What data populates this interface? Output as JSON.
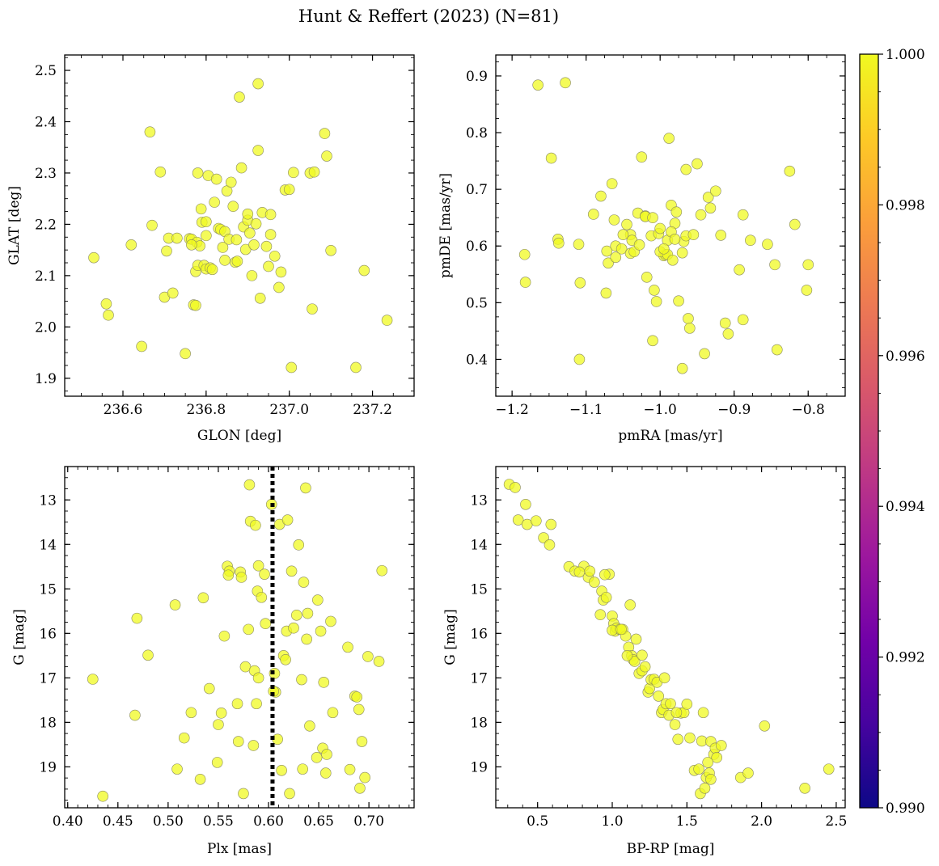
{
  "figure_title": "Hunt & Reffert (2023) (N=81)",
  "colorbar": {
    "min": 0.99,
    "max": 1.0,
    "ticks": [
      0.99,
      0.992,
      0.994,
      0.996,
      0.998,
      1.0
    ],
    "tick_labels": [
      "0.990",
      "0.992",
      "0.994",
      "0.996",
      "0.998",
      "1.000"
    ],
    "colors": [
      "#0d0887",
      "#46039f",
      "#7201a8",
      "#9c179e",
      "#bd3786",
      "#d8576b",
      "#ed7953",
      "#fb9f3a",
      "#fdca26",
      "#f0f921"
    ],
    "point_color": "#f0f921"
  },
  "chart_data": [
    {
      "type": "scatter",
      "title": "",
      "xlabel": "GLON [deg]",
      "ylabel": "GLAT [deg]",
      "xlim": [
        236.46,
        237.3
      ],
      "ylim": [
        1.865,
        2.53
      ],
      "invert_y": false,
      "xticks": [
        236.6,
        236.8,
        237.0,
        237.2
      ],
      "xtick_labels": [
        "236.6",
        "236.8",
        "237.0",
        "237.2"
      ],
      "yticks": [
        1.9,
        2.0,
        2.1,
        2.2,
        2.3,
        2.4,
        2.5
      ],
      "ytick_labels": [
        "1.9",
        "2.0",
        "2.1",
        "2.2",
        "2.3",
        "2.4",
        "2.5"
      ],
      "x_minor_step": 0.05,
      "y_minor_step": 0.025,
      "x": [
        236.53,
        236.56,
        236.565,
        236.62,
        236.645,
        236.665,
        236.67,
        236.69,
        236.7,
        236.705,
        236.71,
        236.72,
        236.73,
        236.75,
        236.76,
        236.765,
        236.77,
        236.775,
        236.775,
        236.778,
        236.78,
        236.78,
        236.785,
        236.788,
        236.79,
        236.795,
        236.8,
        236.8,
        236.8,
        236.805,
        236.81,
        236.815,
        236.82,
        236.825,
        236.83,
        236.835,
        236.84,
        236.845,
        236.85,
        236.855,
        236.86,
        236.865,
        236.87,
        236.875,
        236.88,
        236.885,
        236.89,
        236.895,
        236.9,
        236.905,
        236.91,
        236.915,
        236.92,
        236.925,
        236.925,
        236.93,
        236.935,
        236.945,
        236.95,
        236.955,
        236.955,
        236.965,
        236.975,
        236.98,
        236.99,
        237.0,
        237.005,
        237.01,
        237.05,
        237.055,
        237.06,
        237.085,
        237.09,
        237.1,
        237.16,
        237.18,
        237.235,
        236.765,
        236.845,
        236.873,
        236.9
      ],
      "y": [
        2.135,
        2.045,
        2.023,
        2.16,
        1.962,
        2.38,
        2.198,
        2.302,
        2.058,
        2.148,
        2.173,
        2.066,
        2.173,
        1.948,
        2.172,
        2.171,
        2.043,
        2.108,
        2.042,
        2.165,
        2.12,
        2.3,
        2.158,
        2.23,
        2.204,
        2.12,
        2.205,
        2.113,
        2.178,
        2.295,
        2.115,
        2.112,
        2.243,
        2.288,
        2.192,
        2.19,
        2.155,
        2.186,
        2.265,
        2.171,
        2.282,
        2.235,
        2.126,
        2.128,
        2.448,
        2.31,
        2.195,
        2.151,
        2.208,
        2.183,
        2.1,
        2.16,
        2.201,
        2.474,
        2.344,
        2.056,
        2.223,
        2.157,
        2.118,
        2.18,
        2.219,
        2.138,
        2.077,
        2.107,
        2.267,
        2.268,
        1.921,
        2.301,
        2.3,
        2.035,
        2.302,
        2.377,
        2.333,
        2.149,
        1.921,
        2.11,
        2.013,
        2.16,
        2.13,
        2.17,
        2.22
      ]
    },
    {
      "type": "scatter",
      "title": "",
      "xlabel": "pmRA [mas/yr]",
      "ylabel": "pmDE [mas/yr]",
      "xlim": [
        -1.222,
        -0.75
      ],
      "ylim": [
        0.335,
        0.937
      ],
      "invert_y": false,
      "xticks": [
        -1.2,
        -1.1,
        -1.0,
        -0.9,
        -0.8
      ],
      "xtick_labels": [
        "−1.2",
        "−1.1",
        "−1.0",
        "−0.9",
        "−0.8"
      ],
      "yticks": [
        0.4,
        0.5,
        0.6,
        0.7,
        0.8,
        0.9
      ],
      "ytick_labels": [
        "0.4",
        "0.5",
        "0.6",
        "0.7",
        "0.8",
        "0.9"
      ],
      "x_minor_step": 0.025,
      "y_minor_step": 0.025,
      "x": [
        -1.165,
        -1.128,
        -1.147,
        -1.183,
        -1.182,
        -1.138,
        -1.137,
        -1.11,
        -1.108,
        -1.109,
        -1.09,
        -1.08,
        -1.07,
        -1.073,
        -1.072,
        -1.065,
        -1.062,
        -1.06,
        -1.052,
        -1.045,
        -1.04,
        -1.04,
        -1.038,
        -1.035,
        -1.03,
        -1.028,
        -1.025,
        -1.02,
        -1.018,
        -1.012,
        -1.01,
        -1.008,
        -1.005,
        -1.002,
        -1.0,
        -0.995,
        -0.993,
        -0.99,
        -0.988,
        -0.985,
        -0.98,
        -0.978,
        -0.975,
        -0.97,
        -0.968,
        -0.965,
        -0.962,
        -0.96,
        -0.955,
        -0.95,
        -0.945,
        -0.94,
        -0.935,
        -0.932,
        -0.925,
        -0.918,
        -0.912,
        -0.908,
        -0.893,
        -0.888,
        -0.888,
        -0.878,
        -0.855,
        -0.845,
        -0.842,
        -0.825,
        -0.818,
        -0.802,
        -0.8,
        -1.05,
        -1.0,
        -0.99,
        -1.02,
        -0.985,
        -0.97,
        -0.965,
        -0.983,
        -1.06,
        -0.995,
        -1.01,
        -0.98
      ],
      "y": [
        0.884,
        0.888,
        0.755,
        0.585,
        0.536,
        0.612,
        0.605,
        0.603,
        0.535,
        0.4,
        0.656,
        0.688,
        0.57,
        0.517,
        0.591,
        0.71,
        0.646,
        0.6,
        0.595,
        0.638,
        0.62,
        0.587,
        0.61,
        0.59,
        0.658,
        0.602,
        0.757,
        0.653,
        0.545,
        0.618,
        0.433,
        0.522,
        0.502,
        0.622,
        0.631,
        0.583,
        0.585,
        0.61,
        0.79,
        0.672,
        0.64,
        0.66,
        0.503,
        0.384,
        0.608,
        0.618,
        0.472,
        0.455,
        0.62,
        0.745,
        0.655,
        0.41,
        0.686,
        0.667,
        0.697,
        0.619,
        0.464,
        0.445,
        0.558,
        0.655,
        0.47,
        0.61,
        0.603,
        0.567,
        0.417,
        0.732,
        0.638,
        0.522,
        0.567,
        0.62,
        0.59,
        0.585,
        0.652,
        0.625,
        0.588,
        0.735,
        0.575,
        0.58,
        0.595,
        0.65,
        0.612
      ]
    },
    {
      "type": "scatter",
      "title": "",
      "xlabel": "Plx [mas]",
      "ylabel": "G [mag]",
      "xlim": [
        0.397,
        0.745
      ],
      "ylim": [
        12.25,
        19.92
      ],
      "invert_y": true,
      "vline": 0.604,
      "xticks": [
        0.4,
        0.45,
        0.5,
        0.55,
        0.6,
        0.65,
        0.7
      ],
      "xtick_labels": [
        "0.40",
        "0.45",
        "0.50",
        "0.55",
        "0.60",
        "0.65",
        "0.70"
      ],
      "yticks": [
        13,
        14,
        15,
        16,
        17,
        18,
        19
      ],
      "ytick_labels": [
        "13",
        "14",
        "15",
        "16",
        "17",
        "18",
        "19"
      ],
      "x_minor_step": 0.01,
      "y_minor_step": 0.25,
      "x": [
        0.425,
        0.435,
        0.467,
        0.469,
        0.48,
        0.507,
        0.509,
        0.516,
        0.523,
        0.532,
        0.535,
        0.541,
        0.549,
        0.55,
        0.553,
        0.556,
        0.559,
        0.561,
        0.569,
        0.57,
        0.572,
        0.573,
        0.577,
        0.58,
        0.581,
        0.582,
        0.585,
        0.586,
        0.587,
        0.588,
        0.589,
        0.59,
        0.59,
        0.593,
        0.596,
        0.597,
        0.606,
        0.607,
        0.609,
        0.611,
        0.613,
        0.615,
        0.617,
        0.618,
        0.619,
        0.621,
        0.623,
        0.625,
        0.628,
        0.63,
        0.633,
        0.634,
        0.635,
        0.637,
        0.638,
        0.639,
        0.641,
        0.648,
        0.649,
        0.652,
        0.654,
        0.655,
        0.657,
        0.658,
        0.662,
        0.664,
        0.679,
        0.681,
        0.686,
        0.688,
        0.69,
        0.691,
        0.693,
        0.696,
        0.699,
        0.71,
        0.713,
        0.56,
        0.575,
        0.605,
        0.603
      ],
      "y": [
        17.03,
        19.66,
        17.84,
        15.66,
        16.49,
        15.36,
        19.05,
        18.35,
        17.78,
        19.28,
        15.2,
        17.24,
        18.9,
        18.05,
        17.79,
        16.06,
        14.49,
        14.6,
        17.58,
        18.43,
        14.62,
        14.74,
        16.75,
        15.91,
        12.66,
        13.48,
        18.52,
        16.84,
        13.57,
        17.58,
        15.05,
        14.48,
        17.0,
        15.19,
        14.67,
        15.78,
        16.9,
        17.32,
        18.38,
        13.55,
        19.08,
        16.5,
        16.59,
        15.95,
        13.45,
        19.6,
        14.6,
        15.88,
        15.59,
        14.01,
        17.04,
        19.05,
        14.85,
        12.73,
        16.13,
        15.55,
        18.08,
        18.79,
        15.25,
        15.95,
        18.58,
        17.1,
        19.14,
        18.72,
        15.73,
        17.78,
        16.31,
        19.06,
        17.41,
        17.43,
        17.71,
        19.48,
        18.43,
        19.24,
        16.52,
        16.63,
        14.59,
        14.69,
        19.6,
        17.3,
        13.1
      ]
    },
    {
      "type": "scatter",
      "title": "",
      "xlabel": "BP-RP [mag]",
      "ylabel": "G [mag]",
      "xlim": [
        0.22,
        2.56
      ],
      "ylim": [
        12.25,
        19.92
      ],
      "invert_y": true,
      "xticks": [
        0.5,
        1.0,
        1.5,
        2.0,
        2.5
      ],
      "xtick_labels": [
        "0.5",
        "1.0",
        "1.5",
        "2.0",
        "2.5"
      ],
      "yticks": [
        13,
        14,
        15,
        16,
        17,
        18,
        19
      ],
      "ytick_labels": [
        "13",
        "14",
        "15",
        "16",
        "17",
        "18",
        "19"
      ],
      "x_minor_step": 0.1,
      "y_minor_step": 0.25,
      "x": [
        0.31,
        0.35,
        0.37,
        0.42,
        0.43,
        0.49,
        0.54,
        0.58,
        0.59,
        0.71,
        0.75,
        0.81,
        0.84,
        0.85,
        0.88,
        0.93,
        0.94,
        0.96,
        0.98,
        1.0,
        1.01,
        1.02,
        1.03,
        1.05,
        1.07,
        1.09,
        1.11,
        1.13,
        1.14,
        1.15,
        1.16,
        1.18,
        1.2,
        1.22,
        1.24,
        1.25,
        1.26,
        1.28,
        1.3,
        1.31,
        1.33,
        1.34,
        1.36,
        1.38,
        1.39,
        1.42,
        1.44,
        1.46,
        1.48,
        1.5,
        1.52,
        1.55,
        1.58,
        1.59,
        1.6,
        1.62,
        1.63,
        1.65,
        1.66,
        1.68,
        1.69,
        1.7,
        1.73,
        1.86,
        1.91,
        2.02,
        2.29,
        2.45,
        0.92,
        0.95,
        1.0,
        1.06,
        1.12,
        1.2,
        1.35,
        1.43,
        1.61,
        1.64,
        1.66,
        0.78,
        1.1
      ],
      "y": [
        12.65,
        12.72,
        13.45,
        13.1,
        13.55,
        13.47,
        13.85,
        14.01,
        13.55,
        14.5,
        14.6,
        14.49,
        14.74,
        14.6,
        14.85,
        15.05,
        15.25,
        15.19,
        14.67,
        15.61,
        15.78,
        15.95,
        15.88,
        15.91,
        15.91,
        16.06,
        16.31,
        16.5,
        16.59,
        16.63,
        16.13,
        16.9,
        16.84,
        16.75,
        17.32,
        17.24,
        17.04,
        17.03,
        17.1,
        17.41,
        17.78,
        17.71,
        17.58,
        17.84,
        17.58,
        18.05,
        18.38,
        17.79,
        17.78,
        17.59,
        18.35,
        19.08,
        19.05,
        19.6,
        18.42,
        19.48,
        19.24,
        19.14,
        18.43,
        18.72,
        18.58,
        18.79,
        18.52,
        19.24,
        19.14,
        18.08,
        19.48,
        19.05,
        15.58,
        14.68,
        15.93,
        15.91,
        15.36,
        16.49,
        17.0,
        17.78,
        17.78,
        18.9,
        19.28,
        14.62,
        16.5
      ]
    }
  ]
}
